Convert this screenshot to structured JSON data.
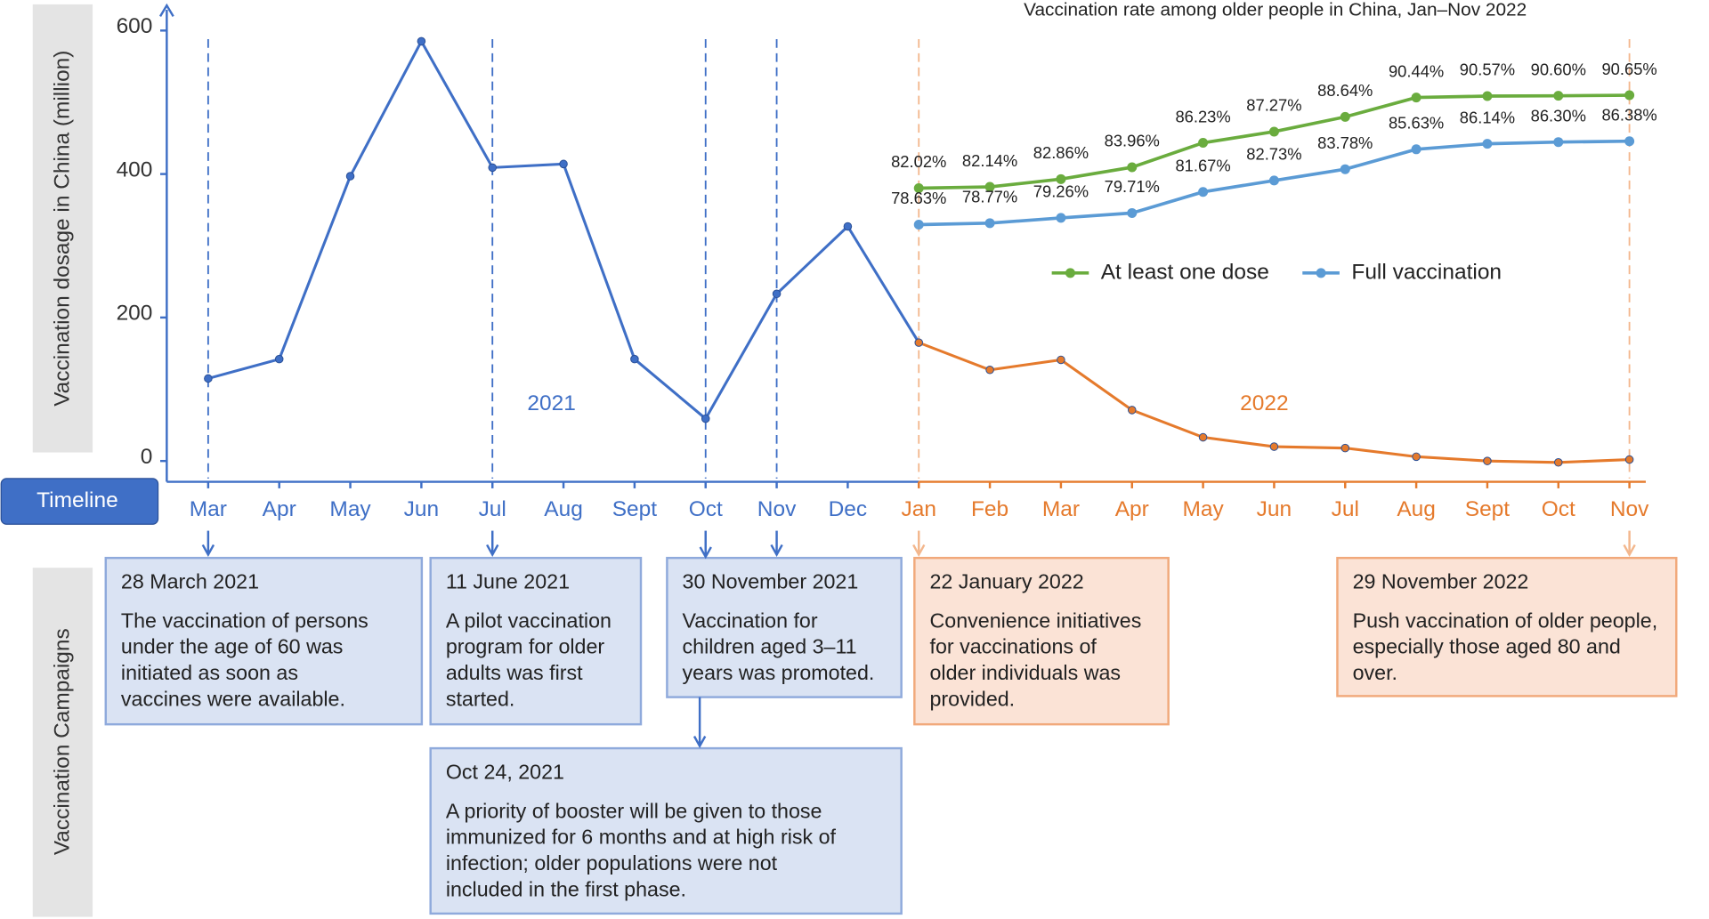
{
  "chart_data": [
    {
      "type": "line",
      "y_axis_label": "Vaccination dosage in China (million)",
      "categories": [
        "Mar",
        "Apr",
        "May",
        "Jun",
        "Jul",
        "Aug",
        "Sept",
        "Oct",
        "Nov",
        "Dec",
        "Jan",
        "Feb",
        "Mar",
        "Apr",
        "May",
        "Jun",
        "Jul",
        "Aug",
        "Sept",
        "Oct",
        "Nov"
      ],
      "series": [
        {
          "name": "2021",
          "color": "#3f6fc6",
          "values": [
            115,
            142,
            397,
            585,
            409,
            414,
            142,
            59,
            233,
            327,
            null,
            null,
            null,
            null,
            null,
            null,
            null,
            null,
            null,
            null,
            null
          ]
        },
        {
          "name": "2022",
          "color": "#e57a2c",
          "values": [
            null,
            null,
            null,
            null,
            null,
            null,
            null,
            null,
            null,
            null,
            165,
            127,
            141,
            71,
            33,
            20,
            18,
            6,
            0,
            -2,
            2
          ]
        }
      ],
      "ylim": [
        -29,
        635
      ],
      "yticks": [
        0,
        200,
        400,
        600
      ]
    },
    {
      "type": "line",
      "title": "Vaccination rate among older people in China, Jan–Nov 2022",
      "ylim": [
        75,
        95
      ],
      "series": [
        {
          "name": "At least one dose",
          "color": "#6aac3e",
          "values": [
            null,
            null,
            null,
            null,
            null,
            null,
            null,
            null,
            null,
            null,
            82.02,
            82.14,
            82.86,
            83.96,
            86.23,
            87.27,
            88.64,
            90.44,
            90.57,
            90.6,
            90.65
          ],
          "value_labels": [
            null,
            null,
            null,
            null,
            null,
            null,
            null,
            null,
            null,
            null,
            "82.02%",
            "82.14%",
            "82.86%",
            "83.96%",
            "86.23%",
            "87.27%",
            "88.64%",
            "90.44%",
            "90.57%",
            "90.60%",
            "90.65%"
          ]
        },
        {
          "name": "Full vaccination",
          "color": "#5b9bd5",
          "values": [
            null,
            null,
            null,
            null,
            null,
            null,
            null,
            null,
            null,
            null,
            78.63,
            78.77,
            79.26,
            79.71,
            81.67,
            82.73,
            83.78,
            85.63,
            86.14,
            86.3,
            86.38
          ],
          "value_labels": [
            null,
            null,
            null,
            null,
            null,
            null,
            null,
            null,
            null,
            null,
            "78.63%",
            "78.77%",
            "79.26%",
            "79.71%",
            "81.67%",
            "82.73%",
            "83.78%",
            "85.63%",
            "86.14%",
            "86.30%",
            "86.38%"
          ]
        }
      ]
    }
  ],
  "timeline": "Timeline",
  "campaigns_label": "Vaccination Campaigns",
  "campaigns": [
    {
      "date": "28 March 2021",
      "lines": [
        "The vaccination of persons",
        "under the age of 60 was",
        "initiated as soon as",
        "vaccines were available."
      ]
    },
    {
      "date": "11 June 2021",
      "lines": [
        "A pilot vaccination",
        "program for older",
        "adults was first",
        "started."
      ]
    },
    {
      "date": "30 November 2021",
      "lines": [
        "Vaccination for",
        "children aged 3–11",
        "years was promoted."
      ]
    },
    {
      "date": "Oct 24, 2021",
      "lines": [
        "A priority of booster will be given to those",
        "immunized for 6 months and at high risk of",
        "infection; older populations were not",
        "included in the first phase."
      ]
    },
    {
      "date": "22 January 2022",
      "lines": [
        "Convenience initiatives",
        "for vaccinations of",
        "older individuals was",
        "provided."
      ]
    },
    {
      "date": "29 November 2022",
      "lines": [
        "Push vaccination of older people,",
        "especially those aged 80 and",
        "over."
      ]
    }
  ]
}
